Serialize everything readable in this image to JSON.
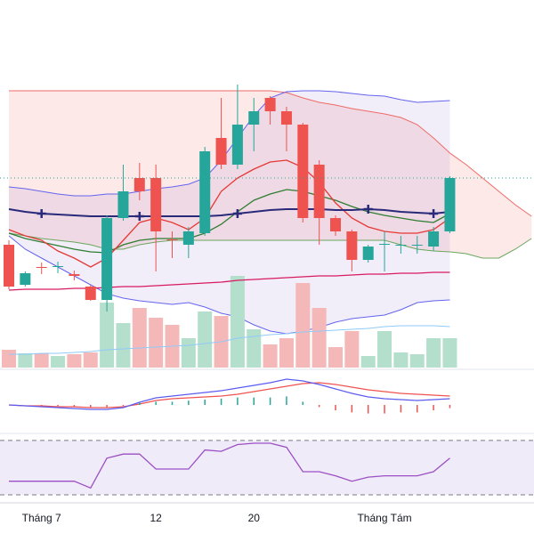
{
  "chart_data": {
    "type": "candlestick",
    "categories": [
      null,
      null,
      "Tháng 7",
      null,
      null,
      null,
      null,
      null,
      null,
      "12",
      null,
      null,
      null,
      null,
      null,
      "20",
      null,
      null,
      null,
      null,
      null,
      null,
      null,
      "Tháng Tám",
      null,
      null,
      null,
      null,
      null,
      null,
      null,
      null,
      null
    ],
    "open": [
      145,
      100,
      120,
      120,
      112,
      98,
      83,
      175,
      220,
      220,
      151,
      145,
      158,
      265,
      235,
      280,
      310,
      295,
      280,
      235,
      175,
      160,
      128,
      145,
      144,
      144,
      143,
      160,
      null,
      null,
      null,
      null,
      null
    ],
    "high": [
      150,
      115,
      125,
      126,
      116,
      100,
      178,
      235,
      237,
      235,
      160,
      165,
      255,
      310,
      325,
      310,
      312,
      300,
      282,
      240,
      178,
      162,
      145,
      160,
      155,
      155,
      165,
      222,
      null,
      null,
      null,
      null,
      null
    ],
    "low": [
      95,
      98,
      112,
      113,
      105,
      82,
      70,
      172,
      195,
      115,
      130,
      130,
      155,
      230,
      230,
      250,
      280,
      250,
      170,
      145,
      155,
      115,
      125,
      115,
      135,
      135,
      138,
      158,
      null,
      null,
      null,
      null,
      null
    ],
    "close": [
      98,
      113,
      119,
      121,
      110,
      83,
      175,
      205,
      205,
      160,
      150,
      160,
      250,
      235,
      280,
      295,
      295,
      280,
      175,
      175,
      160,
      128,
      143,
      146,
      145,
      145,
      160,
      220,
      null,
      null,
      null,
      null,
      null
    ],
    "ylim": [
      0,
      420
    ],
    "up_color": "#26a69a",
    "down_color": "#ef5350",
    "cloud": {
      "fill": "rgba(239,83,80,0.13)",
      "span_a": {
        "color": "#ef6b66",
        "values": [
          318,
          318,
          318,
          318,
          318,
          318,
          318,
          318,
          318,
          318,
          318,
          318,
          318,
          318,
          318,
          318,
          318,
          316,
          310,
          305,
          302,
          298,
          295,
          292,
          288,
          280,
          265,
          248,
          235,
          220,
          205,
          190,
          177
        ]
      },
      "span_b": {
        "color": "#6aa75e",
        "values": [
          158,
          155,
          152,
          150,
          148,
          145,
          140,
          140,
          145,
          148,
          150,
          150,
          150,
          150,
          150,
          150,
          150,
          150,
          150,
          150,
          150,
          150,
          150,
          150,
          145,
          140,
          138,
          137,
          135,
          130,
          130,
          140,
          152
        ]
      }
    },
    "bands": {
      "fill": "rgba(103,58,183,0.09)",
      "upper": {
        "color": "#6464ee",
        "values": [
          210,
          208,
          205,
          202,
          200,
          200,
          202,
          202,
          205,
          208,
          210,
          213,
          220,
          240,
          265,
          290,
          310,
          317,
          318,
          318,
          317,
          315,
          313,
          312,
          308,
          305,
          306,
          307,
          null,
          null,
          null,
          null,
          null
        ]
      },
      "lower": {
        "color": "#6464ee",
        "values": [
          155,
          140,
          130,
          120,
          110,
          100,
          90,
          85,
          82,
          80,
          78,
          80,
          75,
          68,
          64,
          55,
          48,
          45,
          48,
          52,
          58,
          62,
          64,
          66,
          72,
          80,
          82,
          83,
          null,
          null,
          null,
          null,
          null
        ]
      }
    },
    "series": [
      {
        "color": "#d81b60",
        "values": [
          94,
          95,
          95,
          95,
          96,
          96,
          97,
          98,
          98,
          99,
          100,
          101,
          102,
          103,
          105,
          106,
          107,
          108,
          109,
          110,
          110,
          111,
          112,
          112,
          113,
          113,
          114,
          114,
          null,
          null,
          null,
          null,
          null
        ]
      },
      {
        "color": "#2e7d32",
        "values": [
          158,
          152,
          148,
          144,
          140,
          137,
          136,
          145,
          150,
          152,
          152,
          152,
          158,
          168,
          182,
          195,
          202,
          207,
          205,
          200,
          195,
          188,
          182,
          178,
          175,
          172,
          170,
          180,
          null,
          null,
          null,
          null,
          null
        ]
      },
      {
        "color": "#e53935",
        "values": [
          162,
          155,
          150,
          138,
          130,
          120,
          130,
          150,
          170,
          175,
          170,
          162,
          175,
          205,
          220,
          230,
          238,
          240,
          232,
          215,
          192,
          175,
          165,
          160,
          158,
          158,
          162,
          175,
          null,
          null,
          null,
          null,
          null
        ]
      },
      {
        "color": "#2a2a7a",
        "values": [
          185,
          182,
          180,
          179,
          178,
          177,
          177,
          177,
          177,
          177,
          177,
          177,
          177,
          178,
          180,
          182,
          184,
          185,
          185,
          185,
          184,
          184,
          185,
          184,
          182,
          181,
          180,
          182,
          null,
          null,
          null,
          null,
          null
        ]
      }
    ],
    "volume": {
      "ylim": [
        0,
        413
      ],
      "up_color": "#b4dfcc",
      "down_color": "#f5b8b8",
      "values": [
        20,
        16,
        16,
        13,
        15,
        17,
        73,
        50,
        67,
        56,
        48,
        33,
        63,
        58,
        103,
        43,
        26,
        33,
        95,
        67,
        23,
        41,
        13,
        41,
        17,
        15,
        33,
        33,
        null,
        null,
        null,
        null,
        null
      ],
      "ma": {
        "color": "#90caf9",
        "values": [
          15,
          15,
          16,
          16,
          17,
          18,
          20,
          21,
          22,
          23,
          24,
          25,
          27,
          29,
          33,
          35,
          37,
          38,
          40,
          41,
          42,
          43,
          44,
          46,
          47,
          47,
          47,
          46,
          null,
          null,
          null,
          null,
          null
        ]
      }
    },
    "macd": {
      "ylim": [
        -35,
        35
      ],
      "macd": {
        "color": "#5c5cf0",
        "values": [
          0,
          -1,
          -2,
          -3,
          -4,
          -5,
          -5,
          -3,
          3,
          8,
          10,
          12,
          14,
          16,
          19,
          22,
          25,
          29,
          27,
          23,
          18,
          13,
          9,
          7,
          6,
          5,
          6,
          7,
          null,
          null,
          null,
          null,
          null
        ]
      },
      "signal": {
        "color": "#ef5350",
        "values": [
          0,
          -1,
          -1,
          -2,
          -2,
          -3,
          -3,
          -2,
          1,
          5,
          7,
          8,
          9,
          10,
          12,
          15,
          18,
          21,
          24,
          25,
          23,
          20,
          17,
          15,
          13,
          12,
          11,
          10,
          null,
          null,
          null,
          null,
          null
        ]
      }
    },
    "rsi": {
      "ylim": [
        25,
        75
      ],
      "levels": [
        30,
        70
      ],
      "fill": "rgba(126,87,194,0.12)",
      "color": "#9c4fc4",
      "values": [
        40,
        40,
        40,
        40,
        40,
        35,
        57,
        60,
        60,
        49,
        49,
        49,
        63,
        62,
        67,
        68,
        68,
        65,
        47,
        47,
        44,
        40,
        43,
        44,
        44,
        44,
        47,
        57,
        null,
        null,
        null,
        null,
        null
      ]
    }
  }
}
